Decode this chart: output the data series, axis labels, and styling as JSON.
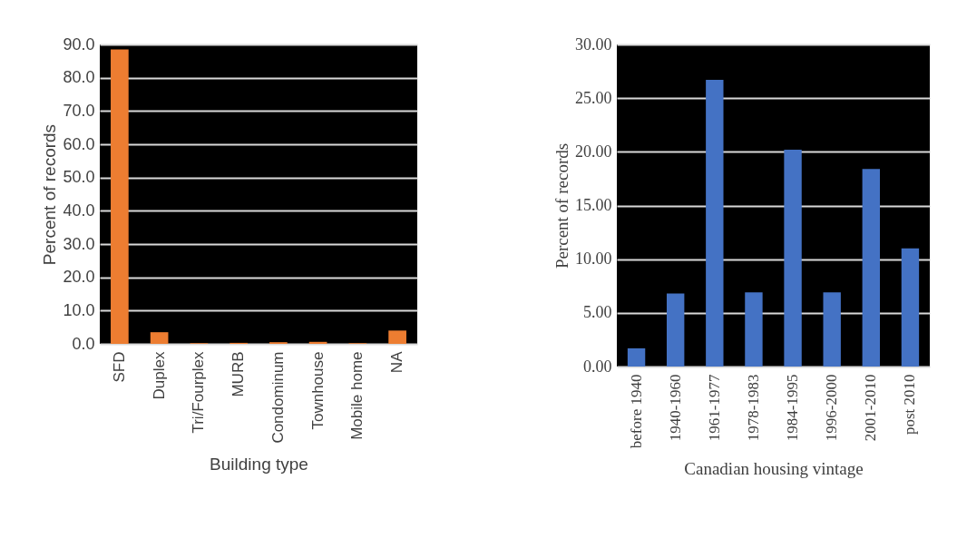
{
  "chart_data": [
    {
      "type": "bar",
      "xlabel": "Building type",
      "ylabel": "Percent of records",
      "categories": [
        "SFD",
        "Duplex",
        "Tri/Fourplex",
        "MURB",
        "Condominum",
        "Townhouse",
        "Mobile home",
        "NA"
      ],
      "series": [
        {
          "color": "#ed7d31",
          "values": [
            88.5,
            3.5,
            0.2,
            0.3,
            0.5,
            0.6,
            0.2,
            4.0
          ]
        }
      ],
      "ylim": [
        0,
        90
      ],
      "yticks": [
        {
          "value": 0,
          "label": "0.0"
        },
        {
          "value": 10,
          "label": "10.0"
        },
        {
          "value": 20,
          "label": "20.0"
        },
        {
          "value": 30,
          "label": "30.0"
        },
        {
          "value": 40,
          "label": "40.0"
        },
        {
          "value": 50,
          "label": "50.0"
        },
        {
          "value": 60,
          "label": "60.0"
        },
        {
          "value": 70,
          "label": "70.0"
        },
        {
          "value": 80,
          "label": "80.0"
        },
        {
          "value": 90,
          "label": "90.0"
        }
      ],
      "grid": "y"
    },
    {
      "type": "bar",
      "xlabel": "Canadian housing vintage",
      "ylabel": "Percent of records",
      "categories": [
        "before 1940",
        "1940-1960",
        "1961-1977",
        "1978-1983",
        "1984-1995",
        "1996-2000",
        "2001-2010",
        "post 2010"
      ],
      "series": [
        {
          "color": "#4472c4",
          "values": [
            1.7,
            6.8,
            26.7,
            6.9,
            20.2,
            6.9,
            18.4,
            11.0
          ]
        }
      ],
      "ylim": [
        0,
        30
      ],
      "yticks": [
        {
          "value": 0,
          "label": "0.00"
        },
        {
          "value": 5,
          "label": "5.00"
        },
        {
          "value": 10,
          "label": "10.00"
        },
        {
          "value": 15,
          "label": "15.00"
        },
        {
          "value": 20,
          "label": "20.00"
        },
        {
          "value": 25,
          "label": "25.00"
        },
        {
          "value": 30,
          "label": "30.00"
        }
      ],
      "grid": "y"
    }
  ]
}
